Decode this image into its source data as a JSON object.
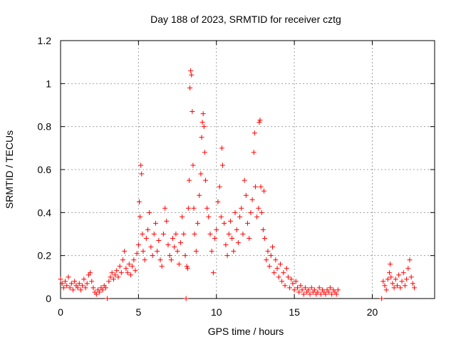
{
  "chart_data": {
    "type": "scatter",
    "title": "Day 188 of 2023, SRMTID for receiver cztg",
    "xlabel": "GPS time / hours",
    "ylabel": "SRMTID / TECUs",
    "xlim": [
      0,
      24
    ],
    "ylim": [
      0,
      1.2
    ],
    "xticks": [
      0,
      5,
      10,
      15,
      20
    ],
    "yticks": [
      0,
      0.2,
      0.4,
      0.6,
      0.8,
      1.0,
      1.2
    ],
    "xtick_labels": [
      "0",
      "5",
      "10",
      "15",
      "20"
    ],
    "ytick_labels": [
      "0",
      "0.2",
      "0.4",
      "0.6",
      "0.8",
      "1",
      "1.2"
    ],
    "grid": true,
    "marker": "+",
    "color": "#ff0000",
    "series": [
      {
        "name": "SRMTID",
        "points": [
          [
            0.0,
            0.09
          ],
          [
            0.1,
            0.07
          ],
          [
            0.2,
            0.05
          ],
          [
            0.3,
            0.08
          ],
          [
            0.4,
            0.06
          ],
          [
            0.5,
            0.1
          ],
          [
            0.6,
            0.05
          ],
          [
            0.7,
            0.07
          ],
          [
            0.8,
            0.04
          ],
          [
            0.9,
            0.08
          ],
          [
            1.0,
            0.06
          ],
          [
            1.1,
            0.05
          ],
          [
            1.2,
            0.07
          ],
          [
            1.3,
            0.04
          ],
          [
            1.4,
            0.06
          ],
          [
            1.5,
            0.09
          ],
          [
            1.6,
            0.05
          ],
          [
            1.7,
            0.07
          ],
          [
            1.8,
            0.11
          ],
          [
            1.9,
            0.12
          ],
          [
            2.0,
            0.08
          ],
          [
            2.1,
            0.05
          ],
          [
            2.2,
            0.03
          ],
          [
            2.3,
            0.02
          ],
          [
            2.4,
            0.04
          ],
          [
            2.5,
            0.03
          ],
          [
            2.6,
            0.05
          ],
          [
            2.7,
            0.04
          ],
          [
            2.8,
            0.06
          ],
          [
            2.9,
            0.05
          ],
          [
            3.0,
            0.0
          ],
          [
            3.1,
            0.08
          ],
          [
            3.2,
            0.1
          ],
          [
            3.3,
            0.12
          ],
          [
            3.4,
            0.09
          ],
          [
            3.5,
            0.11
          ],
          [
            3.6,
            0.13
          ],
          [
            3.7,
            0.1
          ],
          [
            3.8,
            0.15
          ],
          [
            3.9,
            0.12
          ],
          [
            4.0,
            0.18
          ],
          [
            4.1,
            0.22
          ],
          [
            4.2,
            0.14
          ],
          [
            4.3,
            0.12
          ],
          [
            4.4,
            0.16
          ],
          [
            4.5,
            0.11
          ],
          [
            4.6,
            0.15
          ],
          [
            4.7,
            0.18
          ],
          [
            4.8,
            0.13
          ],
          [
            4.9,
            0.21
          ],
          [
            5.0,
            0.25
          ],
          [
            5.05,
            0.45
          ],
          [
            5.1,
            0.38
          ],
          [
            5.15,
            0.62
          ],
          [
            5.2,
            0.58
          ],
          [
            5.25,
            0.3
          ],
          [
            5.3,
            0.22
          ],
          [
            5.4,
            0.18
          ],
          [
            5.5,
            0.28
          ],
          [
            5.6,
            0.32
          ],
          [
            5.7,
            0.4
          ],
          [
            5.8,
            0.24
          ],
          [
            5.9,
            0.2
          ],
          [
            6.0,
            0.3
          ],
          [
            6.1,
            0.35
          ],
          [
            6.2,
            0.22
          ],
          [
            6.3,
            0.27
          ],
          [
            6.4,
            0.18
          ],
          [
            6.5,
            0.15
          ],
          [
            6.6,
            0.3
          ],
          [
            6.7,
            0.42
          ],
          [
            6.8,
            0.36
          ],
          [
            6.9,
            0.25
          ],
          [
            7.0,
            0.2
          ],
          [
            7.1,
            0.18
          ],
          [
            7.2,
            0.28
          ],
          [
            7.3,
            0.24
          ],
          [
            7.4,
            0.3
          ],
          [
            7.5,
            0.22
          ],
          [
            7.6,
            0.16
          ],
          [
            7.7,
            0.26
          ],
          [
            7.8,
            0.38
          ],
          [
            7.9,
            0.3
          ],
          [
            8.0,
            0.2
          ],
          [
            8.05,
            0.0
          ],
          [
            8.1,
            0.15
          ],
          [
            8.15,
            0.14
          ],
          [
            8.2,
            0.42
          ],
          [
            8.25,
            0.55
          ],
          [
            8.3,
            0.98
          ],
          [
            8.35,
            1.06
          ],
          [
            8.4,
            1.04
          ],
          [
            8.45,
            0.87
          ],
          [
            8.5,
            0.62
          ],
          [
            8.55,
            0.42
          ],
          [
            8.6,
            0.3
          ],
          [
            8.7,
            0.22
          ],
          [
            8.8,
            0.35
          ],
          [
            8.9,
            0.48
          ],
          [
            9.0,
            0.58
          ],
          [
            9.05,
            0.75
          ],
          [
            9.1,
            0.82
          ],
          [
            9.15,
            0.86
          ],
          [
            9.2,
            0.8
          ],
          [
            9.25,
            0.68
          ],
          [
            9.3,
            0.55
          ],
          [
            9.4,
            0.42
          ],
          [
            9.5,
            0.38
          ],
          [
            9.6,
            0.3
          ],
          [
            9.7,
            0.22
          ],
          [
            9.8,
            0.12
          ],
          [
            9.9,
            0.28
          ],
          [
            10.0,
            0.32
          ],
          [
            10.1,
            0.45
          ],
          [
            10.2,
            0.52
          ],
          [
            10.3,
            0.38
          ],
          [
            10.35,
            0.7
          ],
          [
            10.4,
            0.62
          ],
          [
            10.5,
            0.35
          ],
          [
            10.6,
            0.25
          ],
          [
            10.7,
            0.2
          ],
          [
            10.8,
            0.3
          ],
          [
            10.9,
            0.36
          ],
          [
            11.0,
            0.28
          ],
          [
            11.1,
            0.22
          ],
          [
            11.2,
            0.4
          ],
          [
            11.3,
            0.32
          ],
          [
            11.4,
            0.26
          ],
          [
            11.5,
            0.38
          ],
          [
            11.6,
            0.42
          ],
          [
            11.7,
            0.3
          ],
          [
            11.8,
            0.55
          ],
          [
            11.9,
            0.48
          ],
          [
            12.0,
            0.35
          ],
          [
            12.1,
            0.28
          ],
          [
            12.2,
            0.4
          ],
          [
            12.3,
            0.46
          ],
          [
            12.4,
            0.68
          ],
          [
            12.45,
            0.77
          ],
          [
            12.5,
            0.52
          ],
          [
            12.6,
            0.38
          ],
          [
            12.7,
            0.42
          ],
          [
            12.75,
            0.82
          ],
          [
            12.8,
            0.83
          ],
          [
            12.85,
            0.52
          ],
          [
            12.9,
            0.4
          ],
          [
            13.0,
            0.32
          ],
          [
            13.05,
            0.5
          ],
          [
            13.1,
            0.28
          ],
          [
            13.2,
            0.18
          ],
          [
            13.3,
            0.22
          ],
          [
            13.4,
            0.15
          ],
          [
            13.5,
            0.2
          ],
          [
            13.6,
            0.24
          ],
          [
            13.7,
            0.12
          ],
          [
            13.8,
            0.18
          ],
          [
            13.9,
            0.14
          ],
          [
            14.0,
            0.1
          ],
          [
            14.1,
            0.16
          ],
          [
            14.2,
            0.08
          ],
          [
            14.3,
            0.12
          ],
          [
            14.4,
            0.06
          ],
          [
            14.5,
            0.14
          ],
          [
            14.6,
            0.1
          ],
          [
            14.7,
            0.05
          ],
          [
            14.8,
            0.09
          ],
          [
            14.9,
            0.07
          ],
          [
            15.0,
            0.04
          ],
          [
            15.1,
            0.08
          ],
          [
            15.2,
            0.05
          ],
          [
            15.3,
            0.03
          ],
          [
            15.4,
            0.06
          ],
          [
            15.5,
            0.04
          ],
          [
            15.6,
            0.02
          ],
          [
            15.7,
            0.05
          ],
          [
            15.8,
            0.03
          ],
          [
            15.9,
            0.04
          ],
          [
            16.0,
            0.02
          ],
          [
            16.1,
            0.05
          ],
          [
            16.2,
            0.03
          ],
          [
            16.3,
            0.04
          ],
          [
            16.4,
            0.02
          ],
          [
            16.5,
            0.03
          ],
          [
            16.6,
            0.05
          ],
          [
            16.7,
            0.02
          ],
          [
            16.8,
            0.04
          ],
          [
            16.9,
            0.03
          ],
          [
            17.0,
            0.02
          ],
          [
            17.1,
            0.04
          ],
          [
            17.2,
            0.03
          ],
          [
            17.3,
            0.05
          ],
          [
            17.4,
            0.02
          ],
          [
            17.5,
            0.04
          ],
          [
            17.6,
            0.03
          ],
          [
            17.7,
            0.02
          ],
          [
            17.8,
            0.04
          ],
          [
            20.6,
            0.0
          ],
          [
            20.7,
            0.08
          ],
          [
            20.8,
            0.06
          ],
          [
            20.9,
            0.04
          ],
          [
            21.0,
            0.09
          ],
          [
            21.1,
            0.12
          ],
          [
            21.15,
            0.16
          ],
          [
            21.2,
            0.1
          ],
          [
            21.3,
            0.07
          ],
          [
            21.4,
            0.05
          ],
          [
            21.5,
            0.09
          ],
          [
            21.6,
            0.06
          ],
          [
            21.7,
            0.11
          ],
          [
            21.8,
            0.05
          ],
          [
            21.9,
            0.08
          ],
          [
            22.0,
            0.12
          ],
          [
            22.1,
            0.06
          ],
          [
            22.2,
            0.09
          ],
          [
            22.3,
            0.14
          ],
          [
            22.4,
            0.18
          ],
          [
            22.5,
            0.1
          ],
          [
            22.6,
            0.07
          ],
          [
            22.7,
            0.05
          ]
        ]
      }
    ]
  }
}
